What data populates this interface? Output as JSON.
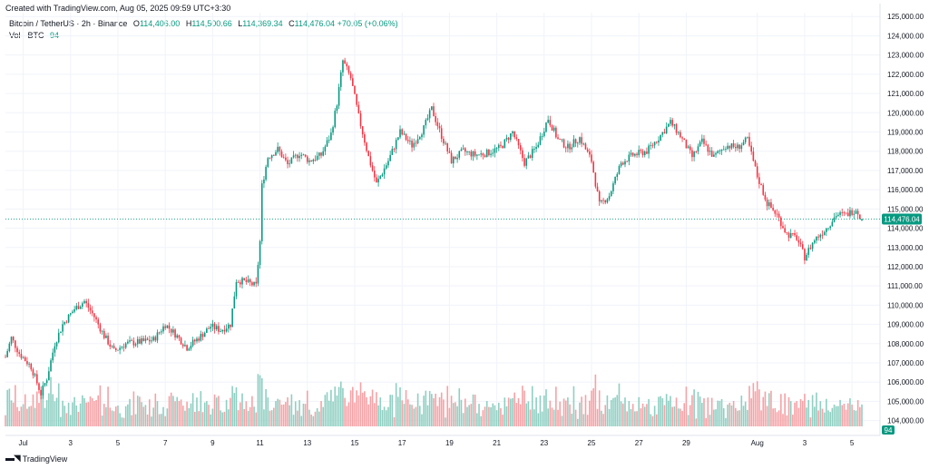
{
  "watermark": "Created with TradingView.com, Aug 05, 2025 09:59 UTC+3:30",
  "legend": {
    "symbol": "Bitcoin / TetherUS · 2h · Binance",
    "open_label": "O",
    "open": "114,406.00",
    "high_label": "H",
    "high": "114,500.66",
    "low_label": "L",
    "low": "114,369.34",
    "close_label": "C",
    "close": "114,476.04",
    "change": "+70.05 (+0.06%)",
    "vol_label": "Vol · BTC",
    "vol_value": "94"
  },
  "footer": {
    "brand": "TradingView"
  },
  "colors": {
    "up": "#089981",
    "down": "#f23645",
    "vol_up": "#8fcfc2",
    "vol_down": "#f5a2a6",
    "grid": "#f0f3fa",
    "text": "#131722"
  },
  "chart_data": {
    "type": "candlestick",
    "title": "Bitcoin / TetherUS · 2h · Binance",
    "y_axis": {
      "ticks": [
        "104,000.00",
        "105,000.00",
        "106,000.00",
        "107,000.00",
        "108,000.00",
        "109,000.00",
        "110,000.00",
        "111,000.00",
        "112,000.00",
        "113,000.00",
        "114,000.00",
        "115,000.00",
        "116,000.00",
        "117,000.00",
        "118,000.00",
        "119,000.00",
        "120,000.00",
        "121,000.00",
        "122,000.00",
        "123,000.00",
        "124,000.00",
        "125,000.00"
      ],
      "range": [
        103700,
        125200
      ]
    },
    "x_axis": {
      "ticks": [
        "Jul",
        "3",
        "5",
        "7",
        "9",
        "11",
        "13",
        "15",
        "17",
        "19",
        "21",
        "23",
        "25",
        "27",
        "29",
        "Aug",
        "3",
        "5"
      ],
      "range_days": [
        "2025-06-30T06:00",
        "2025-08-05T10:00"
      ]
    },
    "last_price": "114,476.04",
    "last_volume": "94",
    "close_path": [
      [
        "2025-06-30T06:00",
        107300
      ],
      [
        "2025-06-30T12:00",
        108300
      ],
      [
        "2025-06-30T20:00",
        107500
      ],
      [
        "2025-07-01T08:00",
        106800
      ],
      [
        "2025-07-01T18:00",
        105400
      ],
      [
        "2025-07-02T00:00",
        106200
      ],
      [
        "2025-07-02T08:00",
        108000
      ],
      [
        "2025-07-02T16:00",
        109000
      ],
      [
        "2025-07-03T04:00",
        109800
      ],
      [
        "2025-07-03T14:00",
        110200
      ],
      [
        "2025-07-04T00:00",
        109400
      ],
      [
        "2025-07-04T10:00",
        108400
      ],
      [
        "2025-07-04T20:00",
        107600
      ],
      [
        "2025-07-05T08:00",
        108000
      ],
      [
        "2025-07-06T00:00",
        108100
      ],
      [
        "2025-07-06T12:00",
        108200
      ],
      [
        "2025-07-07T00:00",
        109000
      ],
      [
        "2025-07-07T10:00",
        108500
      ],
      [
        "2025-07-07T22:00",
        107800
      ],
      [
        "2025-07-08T10:00",
        108300
      ],
      [
        "2025-07-08T22:00",
        108900
      ],
      [
        "2025-07-09T08:00",
        108700
      ],
      [
        "2025-07-09T18:00",
        109000
      ],
      [
        "2025-07-10T00:00",
        111300
      ],
      [
        "2025-07-10T10:00",
        111200
      ],
      [
        "2025-07-10T20:00",
        111000
      ],
      [
        "2025-07-11T00:00",
        113300
      ],
      [
        "2025-07-11T02:00",
        116200
      ],
      [
        "2025-07-11T08:00",
        117700
      ],
      [
        "2025-07-11T18:00",
        118100
      ],
      [
        "2025-07-12T04:00",
        117300
      ],
      [
        "2025-07-12T16:00",
        117900
      ],
      [
        "2025-07-13T02:00",
        117500
      ],
      [
        "2025-07-13T14:00",
        117800
      ],
      [
        "2025-07-14T00:00",
        118900
      ],
      [
        "2025-07-14T06:00",
        120500
      ],
      [
        "2025-07-14T12:00",
        122700
      ],
      [
        "2025-07-14T20:00",
        121800
      ],
      [
        "2025-07-15T04:00",
        119800
      ],
      [
        "2025-07-15T14:00",
        117700
      ],
      [
        "2025-07-15T22:00",
        116300
      ],
      [
        "2025-07-16T10:00",
        117500
      ],
      [
        "2025-07-16T22:00",
        119000
      ],
      [
        "2025-07-17T10:00",
        118300
      ],
      [
        "2025-07-17T22:00",
        119200
      ],
      [
        "2025-07-18T06:00",
        120200
      ],
      [
        "2025-07-18T16:00",
        118800
      ],
      [
        "2025-07-19T02:00",
        117500
      ],
      [
        "2025-07-19T14:00",
        118000
      ],
      [
        "2025-07-20T02:00",
        117800
      ],
      [
        "2025-07-20T14:00",
        117900
      ],
      [
        "2025-07-21T04:00",
        118200
      ],
      [
        "2025-07-21T16:00",
        119000
      ],
      [
        "2025-07-22T04:00",
        117400
      ],
      [
        "2025-07-22T16:00",
        118200
      ],
      [
        "2025-07-23T04:00",
        119700
      ],
      [
        "2025-07-23T14:00",
        118600
      ],
      [
        "2025-07-24T00:00",
        118200
      ],
      [
        "2025-07-24T12:00",
        118700
      ],
      [
        "2025-07-25T00:00",
        117500
      ],
      [
        "2025-07-25T08:00",
        115200
      ],
      [
        "2025-07-25T18:00",
        115700
      ],
      [
        "2025-07-26T06:00",
        117400
      ],
      [
        "2025-07-26T18:00",
        117800
      ],
      [
        "2025-07-27T08:00",
        118000
      ],
      [
        "2025-07-27T20:00",
        118700
      ],
      [
        "2025-07-28T08:00",
        119500
      ],
      [
        "2025-07-28T18:00",
        118800
      ],
      [
        "2025-07-29T06:00",
        117700
      ],
      [
        "2025-07-29T16:00",
        118500
      ],
      [
        "2025-07-30T04:00",
        117700
      ],
      [
        "2025-07-30T16:00",
        118300
      ],
      [
        "2025-07-31T04:00",
        118200
      ],
      [
        "2025-07-31T14:00",
        118600
      ],
      [
        "2025-08-01T00:00",
        116700
      ],
      [
        "2025-08-01T10:00",
        115300
      ],
      [
        "2025-08-01T20:00",
        114700
      ],
      [
        "2025-08-02T06:00",
        113700
      ],
      [
        "2025-08-02T16:00",
        113500
      ],
      [
        "2025-08-03T00:00",
        112500
      ],
      [
        "2025-08-03T10:00",
        113400
      ],
      [
        "2025-08-03T22:00",
        114000
      ],
      [
        "2025-08-04T08:00",
        114700
      ],
      [
        "2025-08-04T18:00",
        114700
      ],
      [
        "2025-08-05T04:00",
        115000
      ],
      [
        "2025-08-05T10:00",
        114476
      ]
    ]
  }
}
